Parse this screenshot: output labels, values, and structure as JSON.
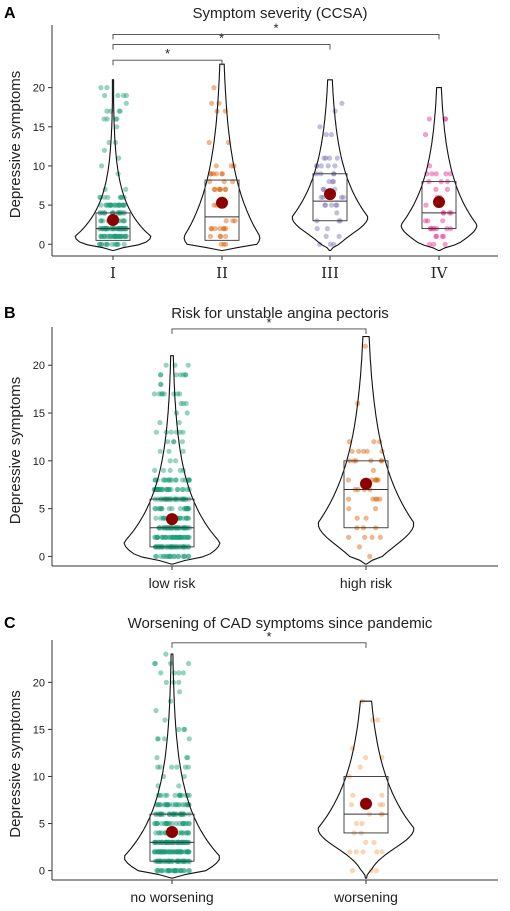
{
  "chart_data": [
    {
      "type": "violin",
      "panel_letter": "A",
      "title": "Symptom severity (CCSA)",
      "ylabel": "Depressive symptoms",
      "ylim": [
        -1.5,
        28
      ],
      "yticks": [
        0,
        5,
        10,
        15,
        20
      ],
      "tick_font": "serif",
      "categories": [
        "I",
        "II",
        "III",
        "IV"
      ],
      "colors": [
        "#1b9e77",
        "#d95f02",
        "#7570b3",
        "#e7298a"
      ],
      "groups": [
        {
          "name": "I",
          "max": 21,
          "q1": 0.5,
          "median": 2,
          "q3": 4,
          "mean": 3.1,
          "n": 160
        },
        {
          "name": "II",
          "max": 23,
          "q1": 0.5,
          "median": 3.5,
          "q3": 8.2,
          "mean": 5.3,
          "n": 45
        },
        {
          "name": "III",
          "max": 21,
          "q1": 3,
          "median": 5.5,
          "q3": 9,
          "mean": 6.4,
          "n": 45
        },
        {
          "name": "IV",
          "max": 20,
          "q1": 2,
          "median": 4,
          "q3": 8,
          "mean": 5.4,
          "n": 40
        }
      ],
      "significance": [
        {
          "from": "I",
          "to": "II",
          "label": "*",
          "y": 23.5
        },
        {
          "from": "I",
          "to": "III",
          "label": "*",
          "y": 25.5
        },
        {
          "from": "I",
          "to": "IV",
          "label": "*",
          "y": 26.8
        }
      ]
    },
    {
      "type": "violin",
      "panel_letter": "B",
      "title": "Risk for unstable angina pectoris",
      "ylabel": "Depressive symptoms",
      "ylim": [
        -1,
        24
      ],
      "yticks": [
        0,
        5,
        10,
        15,
        20
      ],
      "tick_font": "sans",
      "categories": [
        "low risk",
        "high risk"
      ],
      "colors": [
        "#1b9e77",
        "#d95f02"
      ],
      "groups": [
        {
          "name": "low risk",
          "max": 21,
          "q1": 1,
          "median": 3,
          "q3": 6,
          "mean": 3.9,
          "n": 300
        },
        {
          "name": "high risk",
          "max": 23,
          "q1": 3,
          "median": 7,
          "q3": 10,
          "mean": 7.6,
          "n": 45
        }
      ],
      "significance": [
        {
          "from": "low risk",
          "to": "high risk",
          "label": "*",
          "y": 23.8
        }
      ]
    },
    {
      "type": "violin",
      "panel_letter": "C",
      "title": "Worsening of CAD symptoms since pandemic",
      "ylabel": "Depressive symptoms",
      "ylim": [
        -1,
        24.5
      ],
      "yticks": [
        0,
        5,
        10,
        15,
        20
      ],
      "tick_font": "sans",
      "categories": [
        "no worsening",
        "worsening"
      ],
      "colors": [
        "#1b9e77",
        "#f4a460"
      ],
      "groups": [
        {
          "name": "no worsening",
          "max": 23,
          "q1": 1,
          "median": 3,
          "q3": 6,
          "mean": 4.1,
          "n": 320
        },
        {
          "name": "worsening",
          "max": 18,
          "q1": 4,
          "median": 6,
          "q3": 10,
          "mean": 7.1,
          "n": 30
        }
      ],
      "significance": [
        {
          "from": "no worsening",
          "to": "worsening",
          "label": "*",
          "y": 24.2
        }
      ]
    }
  ]
}
